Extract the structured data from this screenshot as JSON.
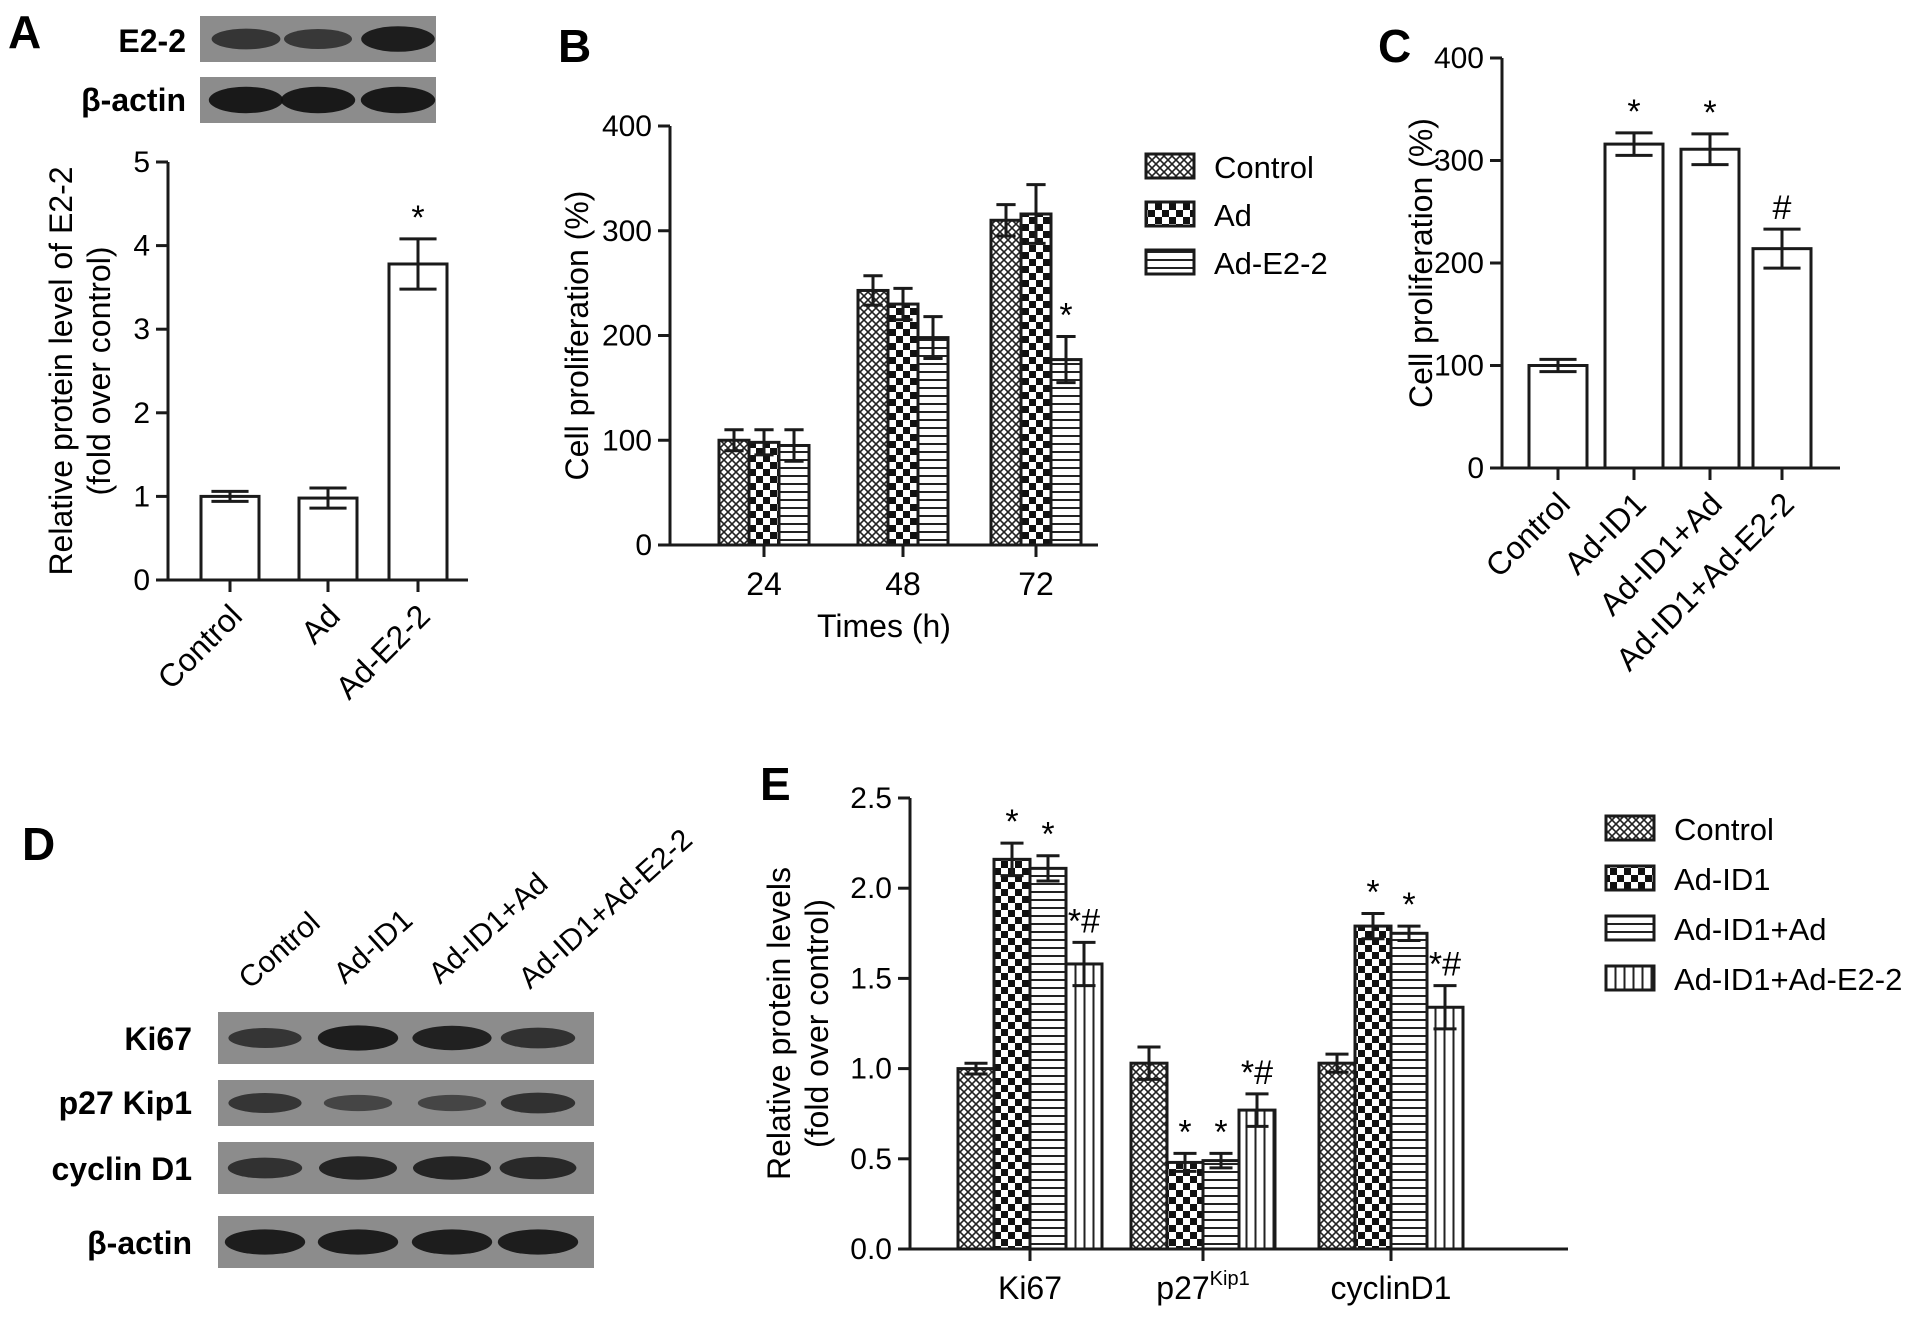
{
  "panel_labels": {
    "a": "A",
    "b": "B",
    "c": "C",
    "d": "D",
    "e": "E"
  },
  "blot_a": {
    "rows": [
      "E2-2",
      "β-actin"
    ],
    "intensities": [
      [
        0.55,
        0.5,
        0.85
      ],
      [
        0.9,
        0.9,
        0.9
      ]
    ]
  },
  "blot_d": {
    "lanes": [
      "Control",
      "Ad-ID1",
      "Ad-ID1+Ad",
      "Ad-ID1+Ad-E2-2"
    ],
    "rows": [
      "Ki67",
      "p27 Kip1",
      "cyclin D1",
      "β-actin"
    ],
    "intensities": [
      [
        0.55,
        0.85,
        0.8,
        0.6
      ],
      [
        0.55,
        0.35,
        0.35,
        0.6
      ],
      [
        0.6,
        0.75,
        0.75,
        0.7
      ],
      [
        0.85,
        0.85,
        0.85,
        0.85
      ]
    ]
  },
  "colors": {
    "ink": "#1a1a1a",
    "band": "#111111",
    "membrane": "#8c8c8c"
  },
  "chart_data": [
    {
      "id": "A",
      "type": "bar",
      "categories": [
        "Control",
        "Ad",
        "Ad-E2-2"
      ],
      "values": [
        1.0,
        0.98,
        3.78
      ],
      "errors": [
        0.06,
        0.12,
        0.3
      ],
      "sig": [
        "",
        "",
        "*"
      ],
      "ylabel": "Relative protein level of E2-2",
      "ylabel2": "(fold over control)",
      "ylim": [
        0,
        5
      ],
      "yticks": [
        "0",
        "1",
        "2",
        "3",
        "4",
        "5"
      ]
    },
    {
      "id": "B",
      "type": "bar",
      "categories": [
        "24",
        "48",
        "72"
      ],
      "series": [
        {
          "name": "Control",
          "pattern": "crosshatch",
          "values": [
            100,
            243,
            310
          ],
          "errors": [
            10,
            14,
            15
          ]
        },
        {
          "name": "Ad",
          "pattern": "checker",
          "values": [
            98,
            230,
            316
          ],
          "errors": [
            12,
            15,
            28
          ]
        },
        {
          "name": "Ad-E2-2",
          "pattern": "hlines",
          "values": [
            95,
            198,
            177
          ],
          "errors": [
            15,
            20,
            22
          ]
        }
      ],
      "sig": [
        [
          "",
          "",
          ""
        ],
        [
          "",
          "",
          ""
        ],
        [
          "",
          "",
          "*"
        ]
      ],
      "xlabel": "Times (h)",
      "ylabel": "Cell proliferation (%)",
      "ylim": [
        0,
        400
      ],
      "yticks": [
        "0",
        "100",
        "200",
        "300",
        "400"
      ],
      "legend": "right"
    },
    {
      "id": "C",
      "type": "bar",
      "categories": [
        "Control",
        "Ad-ID1",
        "Ad-ID1+Ad",
        "Ad-ID1+Ad-E2-2"
      ],
      "values": [
        100,
        316,
        311,
        214
      ],
      "errors": [
        6,
        11,
        15,
        19
      ],
      "sig": [
        "",
        "*",
        "*",
        "#"
      ],
      "ylabel": "Cell proliferation (%)",
      "ylim": [
        0,
        400
      ],
      "yticks": [
        "0",
        "100",
        "200",
        "300",
        "400"
      ]
    },
    {
      "id": "E",
      "type": "bar",
      "categories": [
        "Ki67",
        "p27",
        "cyclinD1"
      ],
      "category_sup": [
        "",
        "Kip1",
        ""
      ],
      "series": [
        {
          "name": "Control",
          "pattern": "crosshatch",
          "values": [
            1.0,
            1.03,
            1.03
          ],
          "errors": [
            0.03,
            0.09,
            0.05
          ]
        },
        {
          "name": "Ad-ID1",
          "pattern": "checker",
          "values": [
            2.16,
            0.48,
            1.79
          ],
          "errors": [
            0.09,
            0.05,
            0.07
          ]
        },
        {
          "name": "Ad-ID1+Ad",
          "pattern": "hlines",
          "values": [
            2.11,
            0.49,
            1.75
          ],
          "errors": [
            0.07,
            0.04,
            0.04
          ]
        },
        {
          "name": "Ad-ID1+Ad-E2-2",
          "pattern": "vlines",
          "values": [
            1.58,
            0.77,
            1.34
          ],
          "errors": [
            0.12,
            0.09,
            0.12
          ]
        }
      ],
      "sig": [
        [
          "",
          "",
          ""
        ],
        [
          "*",
          "*",
          "*"
        ],
        [
          "*",
          "*",
          "*"
        ],
        [
          "*#",
          "*#",
          "*#"
        ]
      ],
      "ylabel": "Relative protein levels",
      "ylabel2": "(fold over control)",
      "ylim": [
        0,
        2.5
      ],
      "yticks": [
        "0.0",
        "0.5",
        "1.0",
        "1.5",
        "2.0",
        "2.5"
      ],
      "legend": "right"
    }
  ]
}
